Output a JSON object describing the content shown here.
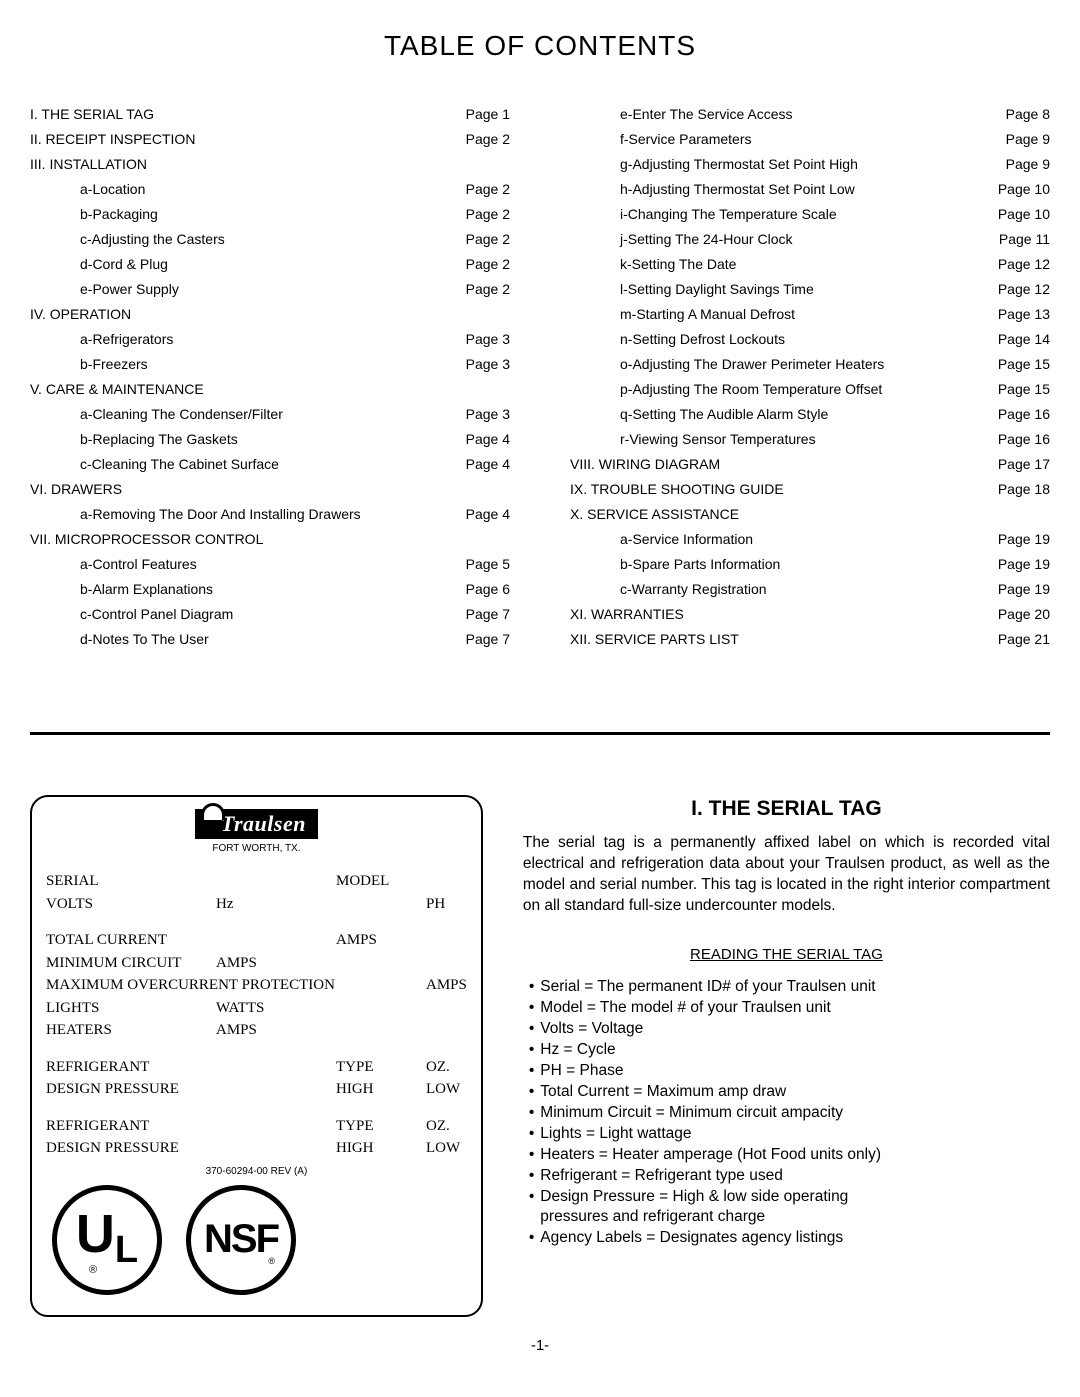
{
  "title": "TABLE OF CONTENTS",
  "toc_left": [
    {
      "level": "main",
      "label": "I. THE SERIAL TAG",
      "page": "Page 1"
    },
    {
      "level": "main",
      "label": "II. RECEIPT INSPECTION",
      "page": "Page 2"
    },
    {
      "level": "main",
      "label": "III. INSTALLATION",
      "page": ""
    },
    {
      "level": "sub",
      "label": "a-Location",
      "page": "Page 2"
    },
    {
      "level": "sub",
      "label": "b-Packaging",
      "page": "Page 2"
    },
    {
      "level": "sub",
      "label": "c-Adjusting the Casters",
      "page": "Page 2"
    },
    {
      "level": "sub",
      "label": "d-Cord & Plug",
      "page": "Page 2"
    },
    {
      "level": "sub",
      "label": "e-Power Supply",
      "page": "Page 2"
    },
    {
      "level": "main",
      "label": "IV. OPERATION",
      "page": ""
    },
    {
      "level": "sub",
      "label": "a-Refrigerators",
      "page": "Page 3"
    },
    {
      "level": "sub",
      "label": "b-Freezers",
      "page": "Page 3"
    },
    {
      "level": "main",
      "label": "V. CARE & MAINTENANCE",
      "page": ""
    },
    {
      "level": "sub",
      "label": "a-Cleaning The Condenser/Filter",
      "page": "Page 3"
    },
    {
      "level": "sub",
      "label": "b-Replacing The Gaskets",
      "page": "Page 4"
    },
    {
      "level": "sub",
      "label": "c-Cleaning The Cabinet Surface",
      "page": "Page 4"
    },
    {
      "level": "main",
      "label": "VI. DRAWERS",
      "page": ""
    },
    {
      "level": "sub",
      "label": "a-Removing The Door And  Installing Drawers",
      "page": "Page 4"
    },
    {
      "level": "main",
      "label": "VII.  MICROPROCESSOR CONTROL",
      "page": ""
    },
    {
      "level": "sub",
      "label": "a-Control Features",
      "page": "Page 5"
    },
    {
      "level": "sub",
      "label": "b-Alarm Explanations",
      "page": "Page 6"
    },
    {
      "level": "sub",
      "label": "c-Control Panel Diagram",
      "page": "Page 7"
    },
    {
      "level": "sub",
      "label": "d-Notes To The User",
      "page": "Page 7"
    }
  ],
  "toc_right": [
    {
      "level": "sub",
      "label": "e-Enter The Service  Access",
      "page": "Page 8"
    },
    {
      "level": "sub",
      "label": "f-Service Parameters",
      "page": "Page 9"
    },
    {
      "level": "sub",
      "label": "g-Adjusting Thermostat Set Point High",
      "page": "Page 9"
    },
    {
      "level": "sub",
      "label": "h-Adjusting Thermostat Set Point Low",
      "page": "Page 10"
    },
    {
      "level": "sub",
      "label": "i-Changing The Temperature Scale",
      "page": "Page 10"
    },
    {
      "level": "sub",
      "label": "j-Setting The 24-Hour Clock",
      "page": "Page 11"
    },
    {
      "level": "sub",
      "label": "k-Setting The Date",
      "page": "Page 12"
    },
    {
      "level": "sub",
      "label": "l-Setting Daylight Savings Time",
      "page": "Page 12"
    },
    {
      "level": "sub",
      "label": "m-Starting A Manual Defrost",
      "page": "Page 13"
    },
    {
      "level": "sub",
      "label": "n-Setting Defrost Lockouts",
      "page": "Page 14"
    },
    {
      "level": "sub",
      "label": "o-Adjusting The Drawer Perimeter Heaters",
      "page": "Page 15"
    },
    {
      "level": "sub",
      "label": "p-Adjusting The Room Temperature Offset",
      "page": "Page 15"
    },
    {
      "level": "sub",
      "label": "q-Setting The Audible Alarm Style",
      "page": "Page 16"
    },
    {
      "level": "sub",
      "label": "r-Viewing Sensor Temperatures",
      "page": "Page 16"
    },
    {
      "level": "main",
      "label": "VIII. WIRING DIAGRAM",
      "page": "Page 17"
    },
    {
      "level": "main",
      "label": "IX. TROUBLE SHOOTING GUIDE",
      "page": "Page 18"
    },
    {
      "level": "main",
      "label": "X. SERVICE ASSISTANCE",
      "page": ""
    },
    {
      "level": "sub",
      "label": "a-Service Information",
      "page": "Page 19"
    },
    {
      "level": "sub",
      "label": "b-Spare Parts Information",
      "page": "Page 19"
    },
    {
      "level": "sub",
      "label": "c-Warranty Registration",
      "page": "Page 19"
    },
    {
      "level": "main",
      "label": "XI. WARRANTIES",
      "page": "Page 20"
    },
    {
      "level": "main",
      "label": "XII.  SERVICE PARTS LIST",
      "page": "Page 21"
    }
  ],
  "tag": {
    "brand": "Traulsen",
    "brand_sub": "FORT WORTH, TX.",
    "rows": [
      [
        {
          "t": "SERIAL",
          "w": "a"
        },
        {
          "t": "",
          "w": "b"
        },
        {
          "t": "MODEL",
          "w": "c"
        }
      ],
      [
        {
          "t": "VOLTS",
          "w": "a"
        },
        {
          "t": "Hz",
          "w": "b"
        },
        {
          "t": "",
          "w": "c"
        },
        {
          "t": "PH",
          "w": "d",
          "left": true
        }
      ],
      "gap",
      [
        {
          "t": "TOTAL CURRENT",
          "w": "a"
        },
        {
          "t": "",
          "w": "b"
        },
        {
          "t": "AMPS",
          "w": "c"
        }
      ],
      [
        {
          "t": "MINIMUM CIRCUIT",
          "w": "a"
        },
        {
          "t": "AMPS",
          "w": "b"
        }
      ],
      [
        {
          "t": "MAXIMUM OVERCURRENT PROTECTION",
          "w": "abc",
          "span": 3
        },
        {
          "t": "AMPS",
          "w": "d"
        }
      ],
      [
        {
          "t": "LIGHTS",
          "w": "a"
        },
        {
          "t": "WATTS",
          "w": "b"
        }
      ],
      [
        {
          "t": "HEATERS",
          "w": "a"
        },
        {
          "t": "AMPS",
          "w": "b"
        }
      ],
      "gap",
      [
        {
          "t": "REFRIGERANT",
          "w": "a"
        },
        {
          "t": "",
          "w": "b"
        },
        {
          "t": "TYPE",
          "w": "c"
        },
        {
          "t": "OZ.",
          "w": "d",
          "left": true
        }
      ],
      [
        {
          "t": "DESIGN PRESSURE",
          "w": "a"
        },
        {
          "t": "",
          "w": "b"
        },
        {
          "t": "HIGH",
          "w": "c"
        },
        {
          "t": "LOW",
          "w": "d",
          "left": true
        }
      ],
      "gap",
      [
        {
          "t": "REFRIGERANT",
          "w": "a"
        },
        {
          "t": "",
          "w": "b"
        },
        {
          "t": "TYPE",
          "w": "c"
        },
        {
          "t": "OZ.",
          "w": "d",
          "left": true
        }
      ],
      [
        {
          "t": "DESIGN PRESSURE",
          "w": "a"
        },
        {
          "t": "",
          "w": "b"
        },
        {
          "t": "HIGH",
          "w": "c"
        },
        {
          "t": "LOW",
          "w": "d",
          "left": true
        }
      ]
    ],
    "rev": "370-60294-00 REV (A)",
    "ul_u": "U",
    "ul_l": "L",
    "ul_reg": "®",
    "nsf": "NSF",
    "nsf_dot": "®"
  },
  "section": {
    "title": "I. THE SERIAL TAG",
    "para": "The serial tag is a permanently affixed label on which is recorded vital electrical and refrigeration data about your Traulsen product, as well as the model and serial number.  This tag is located in the right interior compartment on all standard full-size undercounter models.",
    "subtitle": "READING THE SERIAL TAG",
    "bullets": [
      {
        "t": "Serial = The permanent ID# of your Traulsen unit"
      },
      {
        "t": "Model = The model # of your Traulsen unit"
      },
      {
        "t": "Volts = Voltage"
      },
      {
        "t": "Hz = Cycle"
      },
      {
        "t": "PH = Phase"
      },
      {
        "t": "Total Current = Maximum amp draw"
      },
      {
        "t": "Minimum Circuit = Minimum circuit ampacity"
      },
      {
        "t": "Lights = Light wattage"
      },
      {
        "t": "Heaters = Heater amperage (Hot Food units only)"
      },
      {
        "t": "Refrigerant = Refrigerant type used"
      },
      {
        "t": "Design Pressure = High & low side operating"
      },
      {
        "t": "pressures and refrigerant charge",
        "cont": true
      },
      {
        "t": "Agency Labels = Designates agency listings"
      }
    ]
  },
  "footer": "-1-"
}
